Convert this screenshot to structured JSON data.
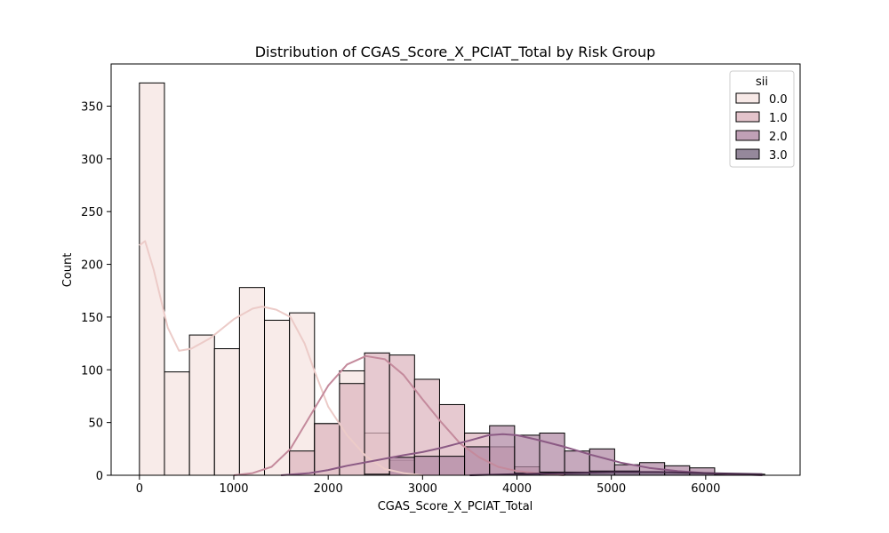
{
  "chart_data": {
    "type": "bar",
    "title": "Distribution of CGAS_Score_X_PCIAT_Total by Risk Group",
    "xlabel": "CGAS_Score_X_PCIAT_Total",
    "ylabel": "Count",
    "xlim": [
      -300,
      7000
    ],
    "ylim": [
      0,
      390
    ],
    "x_ticks": [
      0,
      1000,
      2000,
      3000,
      4000,
      5000,
      6000
    ],
    "y_ticks": [
      0,
      50,
      100,
      150,
      200,
      250,
      300,
      350
    ],
    "bin_edges": [
      0,
      265,
      530,
      795,
      1060,
      1325,
      1590,
      1855,
      2120,
      2385,
      2650,
      2915,
      3180,
      3445,
      3710,
      3975,
      4240,
      4505,
      4770,
      5035,
      5300,
      5565,
      5830,
      6095,
      6360,
      6625
    ],
    "legend_title": "sii",
    "legend_position": "top-right",
    "series": [
      {
        "name": "0.0",
        "color": "#f5e3e1",
        "kde_color": "#eccbc8",
        "values": [
          372,
          98,
          133,
          120,
          178,
          147,
          154,
          49,
          99,
          40,
          14,
          0,
          0,
          0,
          0,
          0,
          0,
          0,
          0,
          0,
          0,
          0,
          0,
          0,
          0
        ],
        "kde": [
          [
            0,
            218
          ],
          [
            60,
            222
          ],
          [
            150,
            195
          ],
          [
            300,
            140
          ],
          [
            420,
            118
          ],
          [
            550,
            120
          ],
          [
            750,
            130
          ],
          [
            1000,
            148
          ],
          [
            1200,
            158
          ],
          [
            1300,
            160
          ],
          [
            1450,
            157
          ],
          [
            1600,
            150
          ],
          [
            1750,
            125
          ],
          [
            1850,
            100
          ],
          [
            2000,
            65
          ],
          [
            2200,
            38
          ],
          [
            2400,
            18
          ],
          [
            2600,
            6
          ],
          [
            2800,
            2
          ],
          [
            3000,
            0
          ]
        ]
      },
      {
        "name": "1.0",
        "color": "#dcb4be",
        "kde_color": "#c48a9c",
        "values": [
          0,
          0,
          0,
          0,
          0,
          0,
          23,
          49,
          87,
          116,
          114,
          91,
          67,
          40,
          27,
          8,
          3,
          1,
          0,
          0,
          0,
          0,
          0,
          0,
          0
        ],
        "kde": [
          [
            1000,
            0
          ],
          [
            1200,
            2
          ],
          [
            1400,
            8
          ],
          [
            1600,
            25
          ],
          [
            1800,
            55
          ],
          [
            2000,
            85
          ],
          [
            2200,
            105
          ],
          [
            2400,
            113
          ],
          [
            2600,
            110
          ],
          [
            2800,
            95
          ],
          [
            3000,
            72
          ],
          [
            3200,
            50
          ],
          [
            3400,
            30
          ],
          [
            3600,
            17
          ],
          [
            3800,
            8
          ],
          [
            4000,
            4
          ],
          [
            4200,
            2
          ],
          [
            4500,
            0
          ]
        ]
      },
      {
        "name": "2.0",
        "color": "#b088a4",
        "kde_color": "#8b5a84",
        "values": [
          0,
          0,
          0,
          0,
          0,
          0,
          0,
          0,
          0,
          1,
          17,
          18,
          18,
          27,
          47,
          38,
          40,
          23,
          25,
          10,
          12,
          9,
          7,
          1,
          0
        ],
        "kde": [
          [
            1500,
            0
          ],
          [
            1800,
            2
          ],
          [
            2000,
            5
          ],
          [
            2200,
            9
          ],
          [
            2500,
            14
          ],
          [
            2800,
            19
          ],
          [
            3000,
            22
          ],
          [
            3200,
            26
          ],
          [
            3500,
            33
          ],
          [
            3700,
            38
          ],
          [
            3850,
            39
          ],
          [
            4000,
            38
          ],
          [
            4200,
            34
          ],
          [
            4500,
            27
          ],
          [
            4800,
            19
          ],
          [
            5100,
            12
          ],
          [
            5400,
            7
          ],
          [
            5700,
            4
          ],
          [
            6000,
            2
          ],
          [
            6300,
            1
          ],
          [
            6600,
            0
          ]
        ]
      },
      {
        "name": "3.0",
        "color": "#7a6a82",
        "kde_color": "#4a2c4c",
        "values": [
          0,
          0,
          0,
          0,
          0,
          0,
          0,
          0,
          0,
          0,
          0,
          0,
          0,
          0,
          0,
          2,
          3,
          3,
          4,
          4,
          3,
          3,
          2,
          1,
          1
        ],
        "kde": [
          [
            3500,
            0
          ],
          [
            4000,
            1
          ],
          [
            4500,
            2
          ],
          [
            5000,
            3
          ],
          [
            5500,
            3
          ],
          [
            6000,
            2
          ],
          [
            6600,
            1
          ]
        ]
      }
    ]
  }
}
